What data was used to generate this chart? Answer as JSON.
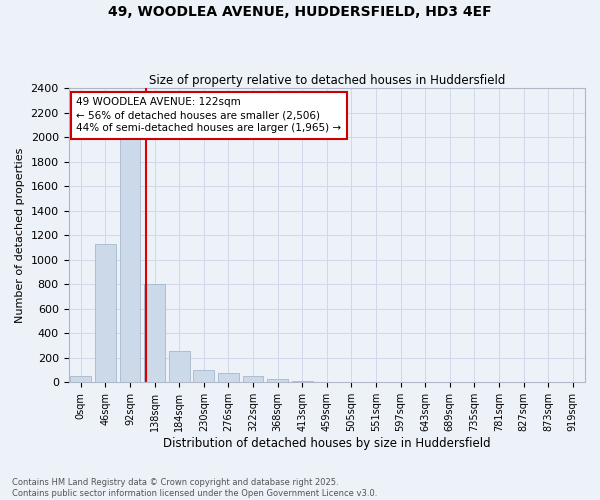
{
  "title": "49, WOODLEA AVENUE, HUDDERSFIELD, HD3 4EF",
  "subtitle": "Size of property relative to detached houses in Huddersfield",
  "xlabel": "Distribution of detached houses by size in Huddersfield",
  "ylabel": "Number of detached properties",
  "footer_line1": "Contains HM Land Registry data © Crown copyright and database right 2025.",
  "footer_line2": "Contains public sector information licensed under the Open Government Licence v3.0.",
  "bin_labels": [
    "0sqm",
    "46sqm",
    "92sqm",
    "138sqm",
    "184sqm",
    "230sqm",
    "276sqm",
    "322sqm",
    "368sqm",
    "413sqm",
    "459sqm",
    "505sqm",
    "551sqm",
    "597sqm",
    "643sqm",
    "689sqm",
    "735sqm",
    "781sqm",
    "827sqm",
    "873sqm",
    "919sqm"
  ],
  "bar_values": [
    50,
    1130,
    2050,
    800,
    255,
    100,
    75,
    50,
    30,
    10,
    5,
    0,
    0,
    0,
    0,
    0,
    0,
    0,
    0,
    0,
    0
  ],
  "bar_color": "#ccd9e8",
  "bar_edge_color": "#9ab0c8",
  "grid_color": "#d0d8ea",
  "bg_color": "#edf1f8",
  "marker_line_color": "#dd0000",
  "annotation_text": "49 WOODLEA AVENUE: 122sqm\n← 56% of detached houses are smaller (2,506)\n44% of semi-detached houses are larger (1,965) →",
  "annotation_box_color": "#ffffff",
  "annotation_border_color": "#cc0000",
  "ylim_max": 2400,
  "ytick_step": 200,
  "marker_sqm": 122,
  "bin_width": 46
}
